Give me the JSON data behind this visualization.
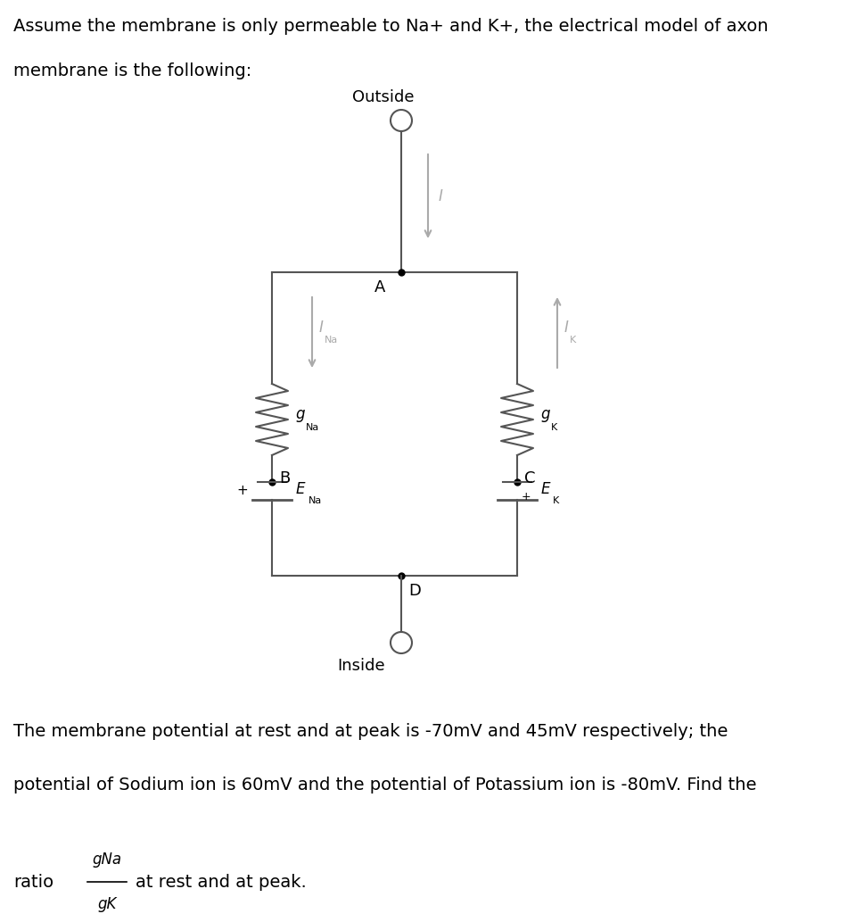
{
  "bg_color": "#ffffff",
  "line_color": "#555555",
  "arrow_color": "#aaaaaa",
  "text_color": "#000000",
  "top_text_line1": "Assume the membrane is only permeable to Na+ and K+, the electrical model of axon",
  "top_text_line2": "membrane is the following:",
  "outside_label": "Outside",
  "inside_label": "Inside",
  "node_A": "A",
  "node_B": "B",
  "node_C": "C",
  "node_D": "D",
  "current_I": "I",
  "INa": "I",
  "INa_sub": "Na",
  "IK": "I",
  "IK_sub": "K",
  "gNa": "g",
  "gNa_sub": "Na",
  "gK": "g",
  "gK_sub": "K",
  "ENa": "E",
  "ENa_sub": "Na",
  "EK": "E",
  "EK_sub": "K",
  "bottom_line1": "The membrane potential at rest and at peak is -70mV and 45mV respectively; the",
  "bottom_line2": "potential of Sodium ion is 60mV and the potential of Potassium ion is -80mV. Find the",
  "ratio_prefix": "ratio",
  "ratio_num": "gNa",
  "ratio_den": "gK",
  "ratio_suffix": "at rest and at peak.",
  "fig_w": 9.69,
  "fig_h": 10.24,
  "dpi": 100
}
